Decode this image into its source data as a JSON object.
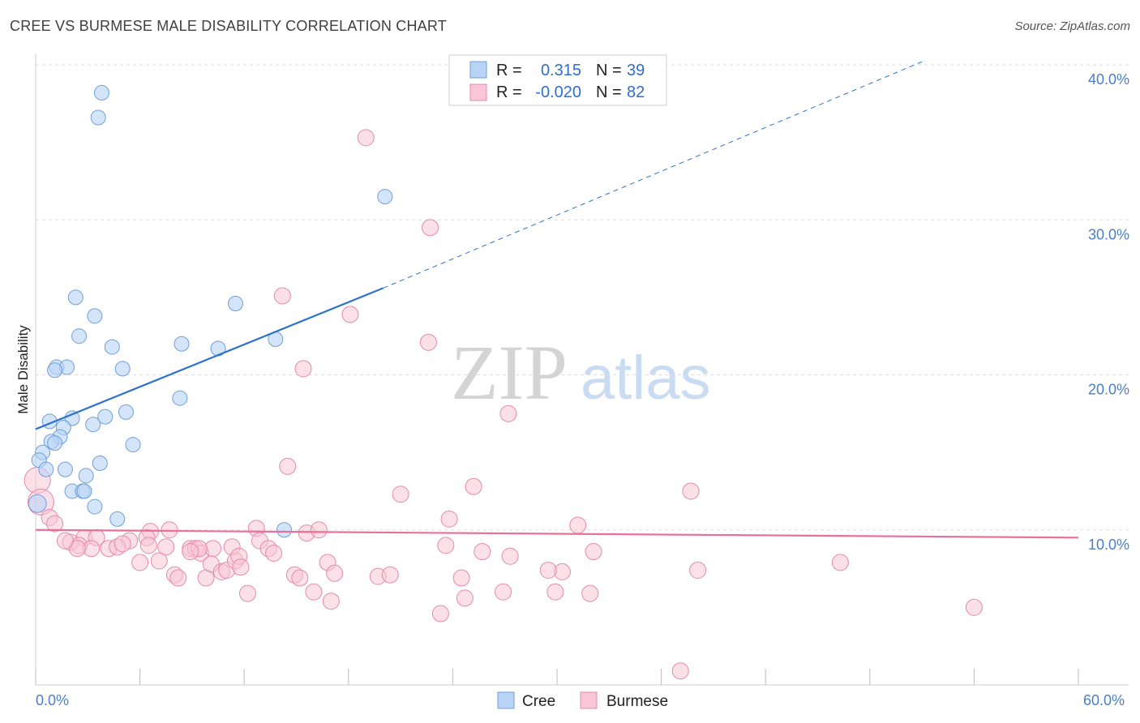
{
  "title": "CREE VS BURMESE MALE DISABILITY CORRELATION CHART",
  "source": "Source: ZipAtlas.com",
  "watermark": {
    "zip": "ZIP",
    "atlas": "atlas"
  },
  "colors": {
    "cree_fill": "#b8d3f5",
    "cree_stroke": "#6f9fd8",
    "cree_line": "#2c72cc",
    "burmese_fill": "#f8c6d6",
    "burmese_stroke": "#e48aab",
    "burmese_line": "#e8709a",
    "tick_text": "#4a7fc8",
    "grid": "#dddddd"
  },
  "legend": {
    "rows": [
      {
        "r_label": "R =",
        "r_value": "0.315",
        "n_label": "N =",
        "n_value": "39"
      },
      {
        "r_label": "R =",
        "r_value": "-0.020",
        "n_label": "N =",
        "n_value": "82"
      }
    ]
  },
  "bottom_legend": [
    "Cree",
    "Burmese"
  ],
  "chart_data": {
    "type": "scatter",
    "title": "CREE VS BURMESE MALE DISABILITY CORRELATION CHART",
    "ylabel": "Male Disability",
    "xlabel": "",
    "xlim": [
      0,
      60
    ],
    "ylim": [
      0,
      40
    ],
    "x_tick_labels": [
      "0.0%",
      "60.0%"
    ],
    "y_ticks": [
      10,
      20,
      30,
      40
    ],
    "y_tick_labels": [
      "10.0%",
      "20.0%",
      "30.0%",
      "40.0%"
    ],
    "grid": true,
    "legend_position": "top-center",
    "series": [
      {
        "name": "Cree",
        "r": 0.315,
        "n": 39,
        "trend": {
          "x0": 0,
          "y0": 16.5,
          "x1": 20,
          "y1": 25.6,
          "dashed_to_x": 51,
          "dashed_y": 40.2
        },
        "points": [
          [
            3.8,
            38.2
          ],
          [
            3.6,
            36.6
          ],
          [
            20.1,
            31.5
          ],
          [
            2.3,
            25.0
          ],
          [
            11.5,
            24.6
          ],
          [
            3.4,
            23.8
          ],
          [
            2.5,
            22.5
          ],
          [
            13.8,
            22.3
          ],
          [
            8.4,
            22.0
          ],
          [
            4.4,
            21.8
          ],
          [
            10.5,
            21.7
          ],
          [
            1.2,
            20.5
          ],
          [
            1.8,
            20.5
          ],
          [
            1.1,
            20.3
          ],
          [
            5.0,
            20.4
          ],
          [
            8.3,
            18.5
          ],
          [
            5.2,
            17.6
          ],
          [
            2.1,
            17.2
          ],
          [
            4.0,
            17.3
          ],
          [
            0.8,
            17.0
          ],
          [
            3.3,
            16.8
          ],
          [
            1.6,
            16.6
          ],
          [
            1.4,
            16.0
          ],
          [
            0.9,
            15.7
          ],
          [
            1.1,
            15.6
          ],
          [
            5.6,
            15.5
          ],
          [
            0.4,
            15.0
          ],
          [
            0.2,
            14.5
          ],
          [
            3.7,
            14.3
          ],
          [
            0.6,
            13.9
          ],
          [
            1.7,
            13.9
          ],
          [
            2.9,
            13.5
          ],
          [
            2.1,
            12.5
          ],
          [
            2.7,
            12.5
          ],
          [
            2.8,
            12.5
          ],
          [
            3.4,
            11.5
          ],
          [
            4.7,
            10.7
          ],
          [
            14.3,
            10.0
          ],
          [
            0.1,
            11.7
          ]
        ]
      },
      {
        "name": "Burmese",
        "r": -0.02,
        "n": 82,
        "trend": {
          "x0": 0,
          "y0": 10.0,
          "x1": 60,
          "y1": 9.5
        },
        "points": [
          [
            19.0,
            35.3
          ],
          [
            22.7,
            29.5
          ],
          [
            14.2,
            25.1
          ],
          [
            18.1,
            23.9
          ],
          [
            22.6,
            22.1
          ],
          [
            15.4,
            20.4
          ],
          [
            27.2,
            17.5
          ],
          [
            14.5,
            14.1
          ],
          [
            25.2,
            12.8
          ],
          [
            21.0,
            12.3
          ],
          [
            37.7,
            12.5
          ],
          [
            23.8,
            10.7
          ],
          [
            31.2,
            10.3
          ],
          [
            0.1,
            13.2
          ],
          [
            0.3,
            11.8
          ],
          [
            0.8,
            10.8
          ],
          [
            1.1,
            10.4
          ],
          [
            2.8,
            9.5
          ],
          [
            3.5,
            9.5
          ],
          [
            5.4,
            9.3
          ],
          [
            6.6,
            9.9
          ],
          [
            6.4,
            9.5
          ],
          [
            7.7,
            10.0
          ],
          [
            6.5,
            9.0
          ],
          [
            7.5,
            8.9
          ],
          [
            2.0,
            9.2
          ],
          [
            2.5,
            9.0
          ],
          [
            3.2,
            8.8
          ],
          [
            4.2,
            8.8
          ],
          [
            4.7,
            8.9
          ],
          [
            5.0,
            9.1
          ],
          [
            8.9,
            8.8
          ],
          [
            9.2,
            8.8
          ],
          [
            9.5,
            8.5
          ],
          [
            10.2,
            8.8
          ],
          [
            11.3,
            8.9
          ],
          [
            12.7,
            10.1
          ],
          [
            12.9,
            9.3
          ],
          [
            13.4,
            8.8
          ],
          [
            13.7,
            8.5
          ],
          [
            15.6,
            9.8
          ],
          [
            16.3,
            10.0
          ],
          [
            23.6,
            9.0
          ],
          [
            25.7,
            8.6
          ],
          [
            27.3,
            8.3
          ],
          [
            30.3,
            7.3
          ],
          [
            32.1,
            8.6
          ],
          [
            31.9,
            5.9
          ],
          [
            6.0,
            7.9
          ],
          [
            7.1,
            8.0
          ],
          [
            8.0,
            7.1
          ],
          [
            8.2,
            6.9
          ],
          [
            9.4,
            8.8
          ],
          [
            9.8,
            6.9
          ],
          [
            10.1,
            7.8
          ],
          [
            10.7,
            7.3
          ],
          [
            11.0,
            7.4
          ],
          [
            11.5,
            8.0
          ],
          [
            11.7,
            8.3
          ],
          [
            11.8,
            7.6
          ],
          [
            12.2,
            5.9
          ],
          [
            14.9,
            7.1
          ],
          [
            15.2,
            6.9
          ],
          [
            16.0,
            6.0
          ],
          [
            16.8,
            7.9
          ],
          [
            17.2,
            7.2
          ],
          [
            17.0,
            5.4
          ],
          [
            19.7,
            7.0
          ],
          [
            20.4,
            7.1
          ],
          [
            23.3,
            4.6
          ],
          [
            24.5,
            6.9
          ],
          [
            24.7,
            5.6
          ],
          [
            26.9,
            6.0
          ],
          [
            29.5,
            7.4
          ],
          [
            29.9,
            6.0
          ],
          [
            37.1,
            0.9
          ],
          [
            38.1,
            7.4
          ],
          [
            46.3,
            7.9
          ],
          [
            54.0,
            5.0
          ],
          [
            8.9,
            8.6
          ],
          [
            2.4,
            8.8
          ],
          [
            1.7,
            9.3
          ]
        ]
      }
    ]
  }
}
